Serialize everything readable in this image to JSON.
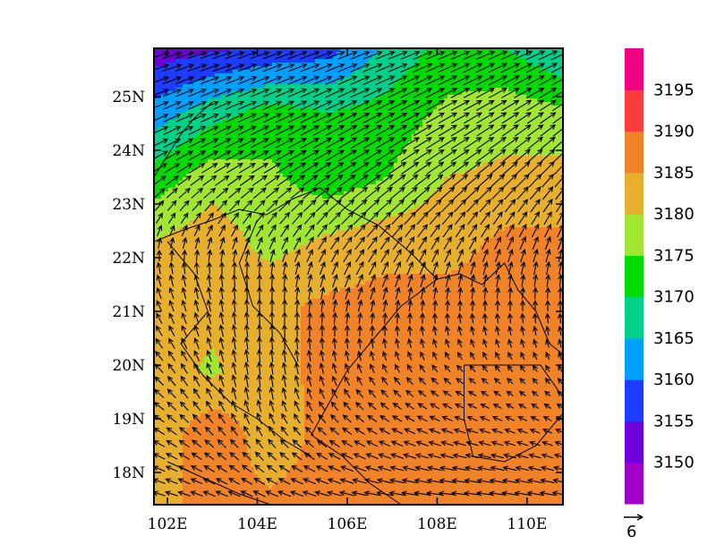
{
  "chart_data": {
    "type": "heatmap",
    "title": "",
    "subtitle": "",
    "xlabel": "",
    "ylabel": "",
    "xlim": [
      101.7,
      110.8
    ],
    "ylim": [
      17.4,
      25.9
    ],
    "x_ticks": [
      {
        "value": 102,
        "label": "102E"
      },
      {
        "value": 104,
        "label": "104E"
      },
      {
        "value": 106,
        "label": "106E"
      },
      {
        "value": 108,
        "label": "108E"
      },
      {
        "value": 110,
        "label": "110E"
      }
    ],
    "y_ticks": [
      {
        "value": 18,
        "label": "18N"
      },
      {
        "value": 19,
        "label": "19N"
      },
      {
        "value": 20,
        "label": "20N"
      },
      {
        "value": 21,
        "label": "21N"
      },
      {
        "value": 22,
        "label": "22N"
      },
      {
        "value": 23,
        "label": "23N"
      },
      {
        "value": 24,
        "label": "24N"
      },
      {
        "value": 25,
        "label": "25N"
      }
    ],
    "colorbar": {
      "levels": [
        3150,
        3155,
        3160,
        3165,
        3170,
        3175,
        3180,
        3185,
        3190,
        3195
      ],
      "labels": [
        "3150",
        "3155",
        "3160",
        "3165",
        "3170",
        "3175",
        "3180",
        "3185",
        "3190",
        "3195"
      ],
      "colors": [
        "#a000c8",
        "#6e00dc",
        "#1e3cff",
        "#00a0ff",
        "#00d28c",
        "#00dc00",
        "#a0e632",
        "#e6af2d",
        "#f08228",
        "#fa3c3c",
        "#f00082"
      ]
    },
    "reference_vector": {
      "magnitude": 6,
      "label": "6"
    },
    "field_samples": {
      "lon": [
        101.7,
        103.0,
        104.3,
        105.6,
        106.9,
        108.2,
        109.5,
        110.8
      ],
      "lat": [
        25.9,
        24.7,
        23.5,
        22.3,
        21.1,
        19.9,
        18.7,
        17.4
      ],
      "values": [
        [
          3152,
          3154,
          3156,
          3158,
          3166,
          3172,
          3170,
          3165
        ],
        [
          3162,
          3168,
          3172,
          3170,
          3172,
          3176,
          3178,
          3176
        ],
        [
          3172,
          3178,
          3176,
          3172,
          3175,
          3180,
          3181,
          3182
        ],
        [
          3180,
          3183,
          3178,
          3181,
          3183,
          3183,
          3186,
          3186
        ],
        [
          3182,
          3182,
          3184,
          3186,
          3187,
          3187,
          3187,
          3187
        ],
        [
          3183,
          3179,
          3184,
          3186,
          3187,
          3187,
          3187,
          3187
        ],
        [
          3181,
          3189,
          3182,
          3187,
          3187,
          3187,
          3186,
          3187
        ],
        [
          3184,
          3186,
          3186,
          3187,
          3187,
          3187,
          3187,
          3187
        ]
      ]
    },
    "wind_samples": {
      "lon": [
        101.7,
        104.0,
        106.3,
        108.5,
        110.8
      ],
      "lat": [
        25.9,
        23.8,
        21.7,
        19.5,
        17.4
      ],
      "u": [
        [
          6.0,
          6.0,
          6.0,
          6.0,
          6.0
        ],
        [
          5.0,
          5.5,
          5.8,
          5.5,
          4.0
        ],
        [
          -1.0,
          0.0,
          2.0,
          1.0,
          0.5
        ],
        [
          -3.0,
          -0.5,
          -2.0,
          -2.5,
          -1.5
        ],
        [
          -4.0,
          -4.0,
          -5.0,
          -5.5,
          -5.0
        ]
      ],
      "v": [
        [
          1.8,
          2.0,
          2.2,
          2.4,
          2.6
        ],
        [
          2.8,
          3.0,
          3.6,
          3.8,
          4.0
        ],
        [
          3.5,
          4.0,
          4.0,
          4.0,
          4.0
        ],
        [
          2.5,
          4.0,
          2.5,
          1.5,
          1.5
        ],
        [
          1.0,
          1.5,
          0.8,
          0.5,
          0.8
        ]
      ]
    }
  }
}
